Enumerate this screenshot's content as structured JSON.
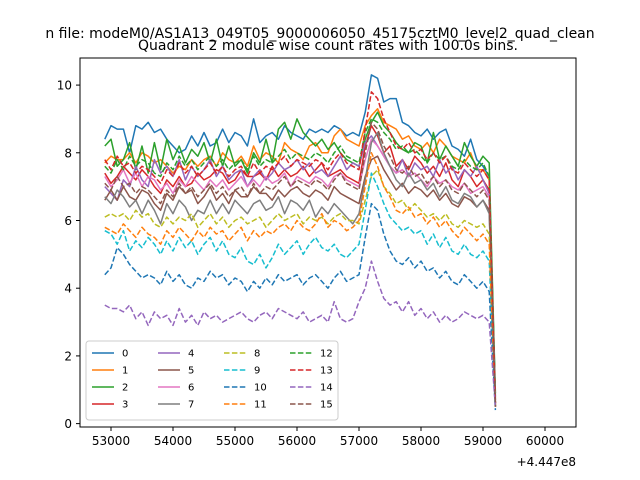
{
  "figure": {
    "suptitle": "n file: modeM0/AS1A13_049T05_9000006050_45175cztM0_level2_quad_clean",
    "offset_text": "+4.447e8"
  },
  "chart_data": {
    "type": "line",
    "title": "Quadrant 2 module wise count rates with 100.0s bins.",
    "xlabel": "",
    "ylabel": "",
    "xlim": [
      52500,
      60500
    ],
    "ylim": [
      -0.1,
      10.8
    ],
    "x_offset": 444700000,
    "x_ticks": [
      53000,
      54000,
      55000,
      56000,
      57000,
      58000,
      59000,
      60000
    ],
    "y_ticks": [
      0,
      2,
      4,
      6,
      8,
      10
    ],
    "x_start": 52900,
    "x_step": 100,
    "legend": {
      "placement": "lower-left",
      "columns": 4
    },
    "series": [
      {
        "name": "0",
        "color": "#1f77b4",
        "style": "solid",
        "values": [
          8.4,
          8.8,
          8.7,
          8.7,
          8.0,
          8.8,
          8.7,
          8.9,
          8.6,
          8.7,
          8.4,
          8.2,
          8.0,
          8.1,
          8.5,
          8.2,
          8.6,
          8.2,
          8.3,
          8.7,
          8.3,
          8.6,
          8.5,
          8.2,
          9.0,
          8.3,
          8.5,
          8.6,
          8.4,
          8.8,
          8.6,
          8.5,
          8.4,
          8.7,
          8.6,
          8.7,
          8.6,
          8.8,
          8.7,
          8.5,
          8.6,
          8.5,
          9.2,
          10.3,
          10.2,
          9.5,
          9.6,
          9.6,
          8.9,
          8.8,
          8.6,
          8.5,
          8.7,
          8.4,
          8.6,
          8.7,
          8.2,
          8.1,
          7.9,
          8.4,
          7.8,
          7.6,
          7.3,
          0.8
        ]
      },
      {
        "name": "1",
        "color": "#ff7f0e",
        "style": "solid",
        "values": [
          7.7,
          7.9,
          7.8,
          7.8,
          8.0,
          7.7,
          8.0,
          7.9,
          7.7,
          7.8,
          7.6,
          7.4,
          7.6,
          7.5,
          7.8,
          7.6,
          7.8,
          7.9,
          7.6,
          8.0,
          7.8,
          7.7,
          7.9,
          7.6,
          8.2,
          7.8,
          8.0,
          7.9,
          7.7,
          8.3,
          8.1,
          8.0,
          7.8,
          8.2,
          8.3,
          8.0,
          8.0,
          8.5,
          8.7,
          8.4,
          8.3,
          8.2,
          8.8,
          9.1,
          9.3,
          8.9,
          8.8,
          8.7,
          8.4,
          8.5,
          8.2,
          8.1,
          8.3,
          8.0,
          8.4,
          8.2,
          7.9,
          7.8,
          7.7,
          8.0,
          7.5,
          7.5,
          7.2,
          0.7
        ]
      },
      {
        "name": "2",
        "color": "#2ca02c",
        "style": "solid",
        "values": [
          8.2,
          8.4,
          7.6,
          7.8,
          8.3,
          7.5,
          8.2,
          7.4,
          8.3,
          7.5,
          8.4,
          7.8,
          8.2,
          7.7,
          8.1,
          7.9,
          8.3,
          7.7,
          8.4,
          7.6,
          8.2,
          7.6,
          7.8,
          7.4,
          8.0,
          7.7,
          8.4,
          7.7,
          8.7,
          8.9,
          8.4,
          9.0,
          8.6,
          8.4,
          8.2,
          8.4,
          8.1,
          8.3,
          8.0,
          7.8,
          7.7,
          7.6,
          8.4,
          8.9,
          9.2,
          8.8,
          8.6,
          8.3,
          8.1,
          8.0,
          8.3,
          8.2,
          7.7,
          8.6,
          7.8,
          8.2,
          7.9,
          7.6,
          8.3,
          7.9,
          7.6,
          7.9,
          7.7,
          0.9
        ]
      },
      {
        "name": "3",
        "color": "#d62728",
        "style": "solid",
        "values": [
          7.4,
          7.1,
          7.3,
          7.6,
          7.4,
          7.2,
          7.5,
          7.3,
          7.0,
          6.8,
          7.2,
          7.0,
          7.3,
          7.0,
          7.1,
          7.4,
          7.2,
          7.3,
          7.5,
          7.4,
          7.1,
          7.2,
          7.5,
          7.3,
          7.3,
          7.4,
          7.2,
          7.6,
          7.3,
          7.5,
          7.3,
          7.4,
          7.6,
          7.3,
          7.5,
          7.7,
          7.3,
          7.4,
          7.5,
          7.3,
          7.2,
          7.1,
          8.2,
          8.8,
          8.5,
          8.0,
          8.2,
          7.6,
          7.8,
          7.5,
          7.9,
          7.7,
          7.4,
          7.6,
          7.3,
          7.7,
          7.2,
          7.0,
          7.5,
          7.3,
          7.0,
          7.2,
          6.9,
          0.6
        ]
      },
      {
        "name": "4",
        "color": "#9467bd",
        "style": "solid",
        "values": [
          7.0,
          6.8,
          6.6,
          7.2,
          7.0,
          7.6,
          7.2,
          7.0,
          7.8,
          7.4,
          7.6,
          7.3,
          7.8,
          7.2,
          7.6,
          7.3,
          7.5,
          7.8,
          7.3,
          7.6,
          7.2,
          7.4,
          7.5,
          7.0,
          7.3,
          7.5,
          7.2,
          7.4,
          7.7,
          7.5,
          7.6,
          7.8,
          7.5,
          7.7,
          7.4,
          7.5,
          7.3,
          7.6,
          7.9,
          7.5,
          7.7,
          7.6,
          8.3,
          8.5,
          8.2,
          7.9,
          7.6,
          7.4,
          7.8,
          7.3,
          7.7,
          7.5,
          7.6,
          7.3,
          7.8,
          7.4,
          7.6,
          7.2,
          7.5,
          7.3,
          7.6,
          7.2,
          6.8,
          0.7
        ]
      },
      {
        "name": "5",
        "color": "#8c564b",
        "style": "solid",
        "values": [
          6.6,
          6.9,
          6.6,
          7.0,
          6.7,
          6.6,
          6.9,
          6.8,
          6.5,
          6.3,
          6.8,
          6.6,
          7.0,
          6.8,
          6.9,
          6.5,
          6.7,
          7.0,
          6.6,
          6.8,
          6.5,
          6.9,
          6.7,
          6.7,
          7.0,
          6.8,
          6.8,
          6.6,
          6.9,
          6.7,
          6.9,
          7.0,
          6.8,
          6.7,
          6.9,
          6.8,
          6.6,
          7.0,
          6.8,
          6.7,
          6.6,
          6.5,
          7.3,
          7.8,
          7.9,
          7.5,
          7.2,
          6.9,
          7.1,
          6.8,
          7.0,
          6.9,
          6.7,
          6.9,
          6.6,
          6.8,
          6.5,
          6.4,
          6.7,
          6.6,
          6.4,
          6.6,
          6.3,
          0.5
        ]
      },
      {
        "name": "6",
        "color": "#e377c2",
        "style": "solid",
        "values": [
          7.3,
          7.0,
          7.2,
          7.5,
          7.1,
          7.4,
          7.0,
          7.3,
          7.2,
          6.9,
          7.1,
          6.8,
          7.2,
          7.0,
          7.3,
          7.1,
          6.9,
          7.2,
          7.0,
          7.2,
          6.9,
          7.1,
          7.3,
          7.0,
          7.2,
          7.0,
          7.3,
          7.1,
          7.2,
          7.4,
          7.0,
          7.3,
          7.2,
          7.1,
          7.3,
          7.2,
          7.0,
          7.3,
          7.4,
          7.2,
          7.1,
          7.0,
          7.8,
          8.4,
          8.2,
          7.9,
          7.6,
          7.4,
          7.5,
          7.3,
          7.4,
          7.2,
          7.0,
          7.3,
          7.1,
          7.2,
          7.0,
          6.9,
          7.1,
          6.8,
          6.9,
          7.0,
          6.7,
          0.6
        ]
      },
      {
        "name": "7",
        "color": "#7f7f7f",
        "style": "solid",
        "values": [
          6.7,
          6.5,
          6.9,
          6.7,
          6.4,
          6.6,
          6.2,
          6.6,
          6.3,
          5.9,
          6.5,
          6.2,
          6.6,
          6.4,
          6.0,
          6.3,
          6.2,
          6.6,
          6.2,
          6.5,
          6.2,
          6.6,
          6.4,
          6.2,
          6.5,
          6.6,
          6.3,
          6.4,
          6.7,
          6.2,
          6.6,
          6.5,
          6.3,
          6.6,
          6.1,
          6.4,
          6.2,
          6.5,
          6.3,
          6.1,
          5.9,
          6.2,
          7.2,
          8.3,
          8.6,
          8.0,
          7.6,
          7.2,
          7.0,
          7.4,
          7.1,
          7.2,
          6.9,
          7.1,
          6.7,
          7.0,
          6.6,
          6.5,
          6.8,
          6.7,
          6.4,
          6.6,
          6.2,
          0.5
        ]
      },
      {
        "name": "8",
        "color": "#bcbd22",
        "style": "dashed",
        "values": [
          6.1,
          6.2,
          6.1,
          6.2,
          6.0,
          6.3,
          6.1,
          6.2,
          5.9,
          5.8,
          6.1,
          5.9,
          6.1,
          6.0,
          6.2,
          5.8,
          6.0,
          6.2,
          5.9,
          6.1,
          5.8,
          6.0,
          6.1,
          5.9,
          6.0,
          6.1,
          5.8,
          6.0,
          6.2,
          6.0,
          6.1,
          6.2,
          5.9,
          6.1,
          6.0,
          6.1,
          5.9,
          6.1,
          6.2,
          6.0,
          6.0,
          5.9,
          6.6,
          7.3,
          7.5,
          7.0,
          6.8,
          6.5,
          6.6,
          6.3,
          6.5,
          6.3,
          6.1,
          6.2,
          6.0,
          6.2,
          5.9,
          5.8,
          6.0,
          5.9,
          5.8,
          5.9,
          5.6,
          0.5
        ]
      },
      {
        "name": "9",
        "color": "#17becf",
        "style": "dashed",
        "values": [
          5.7,
          5.6,
          5.3,
          5.7,
          5.1,
          5.4,
          5.2,
          5.5,
          5.3,
          5.0,
          5.4,
          5.1,
          5.5,
          5.2,
          5.4,
          5.0,
          5.3,
          5.5,
          5.1,
          5.4,
          5.0,
          4.9,
          5.2,
          4.8,
          4.7,
          5.0,
          4.6,
          4.9,
          5.3,
          5.0,
          5.2,
          5.4,
          5.0,
          5.3,
          5.5,
          5.2,
          5.1,
          5.3,
          5.0,
          4.9,
          5.1,
          5.3,
          6.3,
          7.4,
          7.0,
          6.5,
          6.1,
          5.9,
          5.7,
          5.8,
          5.6,
          5.7,
          5.3,
          5.6,
          5.2,
          5.5,
          5.1,
          5.0,
          5.3,
          5.0,
          4.9,
          5.1,
          4.8,
          0.5
        ]
      },
      {
        "name": "10",
        "color": "#1f77b4",
        "style": "dashed",
        "values": [
          4.4,
          4.6,
          5.2,
          5.0,
          4.7,
          4.5,
          4.3,
          4.4,
          4.3,
          4.1,
          4.5,
          4.2,
          4.4,
          4.1,
          4.0,
          4.3,
          4.2,
          4.5,
          4.3,
          4.4,
          4.1,
          4.3,
          4.2,
          3.9,
          4.2,
          4.0,
          4.3,
          4.1,
          4.4,
          4.2,
          4.3,
          4.4,
          4.1,
          4.3,
          4.4,
          4.2,
          4.0,
          4.3,
          4.5,
          4.2,
          4.3,
          4.4,
          5.5,
          6.5,
          6.3,
          5.6,
          5.1,
          4.8,
          4.7,
          4.9,
          4.6,
          4.8,
          4.5,
          4.6,
          4.3,
          4.5,
          4.2,
          4.1,
          4.4,
          4.2,
          4.0,
          4.2,
          3.9,
          0.4
        ]
      },
      {
        "name": "11",
        "color": "#ff7f0e",
        "style": "dashed",
        "values": [
          5.8,
          5.7,
          5.6,
          5.9,
          5.7,
          5.5,
          5.8,
          5.6,
          5.5,
          5.3,
          5.7,
          5.5,
          5.8,
          5.6,
          5.4,
          5.7,
          5.5,
          5.8,
          5.6,
          5.7,
          5.4,
          5.6,
          5.8,
          5.4,
          5.7,
          5.5,
          5.7,
          5.6,
          5.8,
          5.9,
          5.7,
          6.0,
          5.8,
          5.7,
          5.9,
          6.2,
          5.8,
          6.0,
          5.9,
          5.7,
          5.8,
          6.0,
          7.0,
          8.0,
          7.6,
          7.0,
          6.7,
          6.3,
          6.2,
          6.4,
          6.1,
          6.2,
          5.9,
          6.1,
          5.8,
          6.0,
          5.7,
          5.5,
          5.8,
          5.6,
          5.4,
          5.6,
          5.3,
          0.5
        ]
      },
      {
        "name": "12",
        "color": "#2ca02c",
        "style": "dashed",
        "values": [
          7.6,
          7.4,
          7.8,
          7.5,
          7.9,
          7.6,
          7.8,
          7.7,
          7.4,
          7.3,
          7.7,
          7.5,
          7.9,
          7.6,
          7.8,
          7.5,
          7.7,
          7.9,
          7.6,
          7.8,
          7.5,
          7.7,
          7.8,
          7.5,
          7.9,
          7.6,
          7.8,
          7.7,
          7.9,
          8.1,
          7.8,
          8.0,
          7.9,
          7.8,
          8.0,
          7.9,
          7.7,
          8.0,
          8.2,
          7.9,
          7.8,
          7.7,
          8.6,
          9.0,
          8.9,
          8.6,
          8.4,
          8.1,
          8.2,
          8.0,
          8.1,
          7.9,
          7.7,
          8.0,
          7.8,
          7.9,
          7.6,
          7.5,
          7.8,
          7.6,
          7.5,
          7.7,
          7.3,
          0.6
        ]
      },
      {
        "name": "13",
        "color": "#d62728",
        "style": "dashed",
        "values": [
          7.8,
          7.5,
          7.9,
          7.6,
          7.7,
          7.4,
          7.6,
          7.5,
          7.3,
          7.1,
          7.5,
          7.3,
          7.7,
          7.4,
          7.6,
          7.3,
          7.5,
          7.7,
          7.4,
          7.6,
          7.3,
          7.5,
          7.6,
          7.3,
          7.7,
          7.4,
          7.6,
          7.5,
          7.7,
          7.9,
          7.6,
          7.8,
          7.7,
          7.6,
          7.8,
          7.7,
          7.5,
          7.8,
          8.0,
          7.7,
          7.6,
          7.5,
          8.7,
          9.8,
          9.6,
          9.0,
          8.6,
          8.2,
          8.1,
          8.3,
          8.0,
          8.1,
          7.8,
          8.0,
          7.7,
          7.9,
          7.5,
          7.4,
          7.7,
          7.5,
          7.3,
          7.5,
          7.2,
          0.6
        ]
      },
      {
        "name": "14",
        "color": "#9467bd",
        "style": "dashed",
        "values": [
          3.5,
          3.4,
          3.4,
          3.3,
          3.5,
          3.1,
          3.3,
          2.9,
          3.3,
          3.1,
          3.2,
          2.9,
          3.4,
          3.0,
          3.2,
          2.9,
          3.3,
          3.1,
          3.2,
          3.0,
          3.1,
          3.2,
          3.3,
          3.1,
          3.0,
          3.2,
          3.3,
          3.1,
          3.4,
          3.3,
          3.2,
          3.1,
          3.3,
          3.0,
          3.1,
          3.2,
          3.0,
          3.6,
          3.1,
          3.0,
          3.1,
          3.6,
          4.0,
          4.8,
          4.2,
          3.7,
          3.5,
          3.6,
          3.3,
          3.6,
          3.2,
          3.4,
          3.1,
          3.3,
          3.0,
          3.2,
          3.0,
          3.1,
          3.3,
          3.2,
          3.1,
          3.2,
          3.0,
          0.5
        ]
      },
      {
        "name": "15",
        "color": "#8c564b",
        "style": "dashed",
        "values": [
          7.1,
          6.9,
          7.3,
          7.0,
          7.1,
          6.8,
          7.0,
          6.9,
          6.7,
          6.5,
          6.9,
          6.7,
          7.1,
          6.8,
          7.0,
          6.7,
          6.9,
          7.1,
          6.8,
          7.0,
          6.7,
          6.9,
          7.0,
          6.7,
          7.1,
          6.8,
          7.0,
          6.9,
          7.1,
          7.3,
          7.0,
          7.2,
          7.1,
          7.0,
          7.2,
          7.1,
          6.9,
          7.2,
          7.4,
          7.1,
          7.0,
          6.9,
          8.0,
          8.9,
          8.7,
          8.2,
          7.9,
          7.5,
          7.4,
          7.6,
          7.3,
          7.4,
          7.1,
          7.3,
          7.0,
          7.2,
          6.9,
          6.8,
          7.1,
          6.9,
          6.7,
          6.9,
          6.6,
          0.5
        ]
      }
    ]
  }
}
